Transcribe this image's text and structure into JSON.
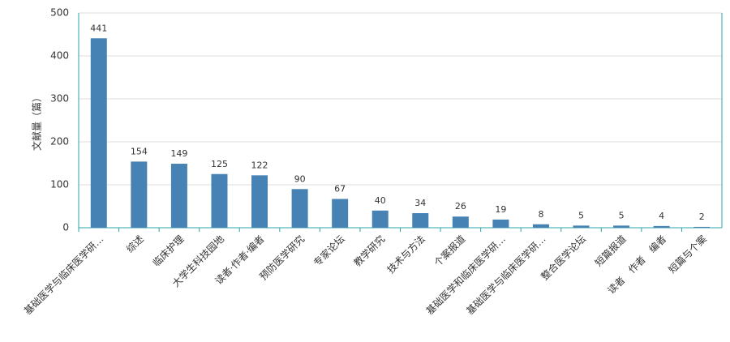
{
  "chart_data": {
    "type": "bar",
    "y_label": "文献量（篇）",
    "categories": [
      "基础医学与临床医学研…",
      "综述",
      "临床护理",
      "大学生科技园地",
      "读者·作者·编者",
      "预防医学研究",
      "专家论坛",
      "教学研究",
      "技术与方法",
      "个案报道",
      "基础医学和临床医学研…",
      "基础医学与临床医学研…",
      "整合医学论坛",
      "短篇报道",
      "读者　作者　编者",
      "短篇与个案"
    ],
    "values": [
      441,
      154,
      149,
      125,
      122,
      90,
      67,
      40,
      34,
      26,
      19,
      8,
      5,
      5,
      4,
      2
    ],
    "color": "#4682b4",
    "ylim": [
      0,
      500
    ],
    "yticks": [
      0,
      100,
      200,
      300,
      400,
      500
    ],
    "grid": true
  }
}
